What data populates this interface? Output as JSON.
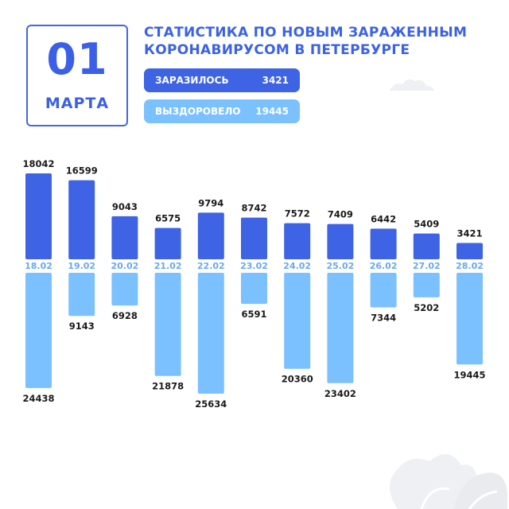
{
  "date": {
    "day": "01",
    "month": "МАРТА"
  },
  "title": {
    "line1": "СТАТИСТИКА ПО НОВЫМ ЗАРАЖЕННЫМ",
    "line2": "КОРОНАВИРУСОМ В ПЕТЕРБУРГЕ"
  },
  "legend": {
    "infected_label": "ЗАРАЗИЛОСЬ",
    "infected_value": "3421",
    "recovered_label": "ВЫЗДОРОВЕЛО",
    "recovered_value": "19445"
  },
  "colors": {
    "infected": "#3e63e4",
    "recovered": "#7cc1ff",
    "accent": "#3b62e6"
  },
  "chart_data": {
    "type": "bar",
    "categories": [
      "18.02",
      "19.02",
      "20.02",
      "21.02",
      "22.02",
      "23.02",
      "24.02",
      "25.02",
      "26.02",
      "27.02",
      "28.02"
    ],
    "series": [
      {
        "name": "ЗАРАЗИЛОСЬ",
        "values": [
          18042,
          16599,
          9043,
          6575,
          9794,
          8742,
          7572,
          7409,
          6442,
          5409,
          3421
        ]
      },
      {
        "name": "ВЫЗДОРОВЕЛО",
        "values": [
          24438,
          9143,
          6928,
          21878,
          25634,
          6591,
          20360,
          23402,
          7344,
          5202,
          19445
        ]
      }
    ]
  }
}
